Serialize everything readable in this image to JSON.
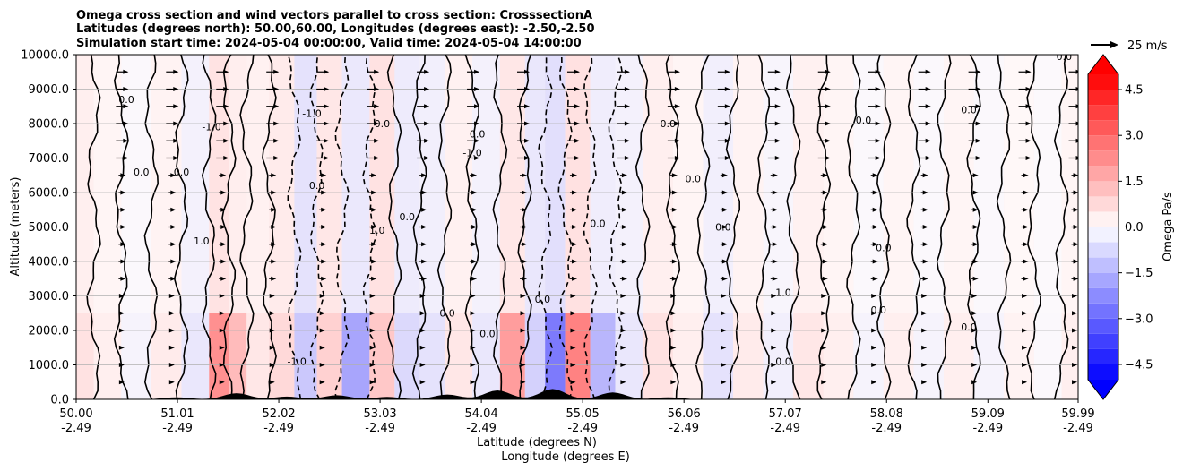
{
  "chart_data": {
    "type": "heatmap",
    "title_lines": [
      "Omega cross section and wind vectors parallel to cross section: CrosssectionA",
      "Latitudes (degrees north): 50.00,60.00, Longitudes (degrees east): -2.50,-2.50",
      "Simulation start time: 2024-05-04 00:00:00, Valid time: 2024-05-04 14:00:00"
    ],
    "ylabel": "Altitude (meters)",
    "xlabel_lines": [
      "Latitude (degrees N)",
      "Longitude (degrees E)"
    ],
    "ylim": [
      0,
      10000
    ],
    "xlim": [
      50.0,
      59.99
    ],
    "y_ticks": [
      {
        "value": 0,
        "label": "0.0"
      },
      {
        "value": 1000,
        "label": "1000.0"
      },
      {
        "value": 2000,
        "label": "2000.0"
      },
      {
        "value": 3000,
        "label": "3000.0"
      },
      {
        "value": 4000,
        "label": "4000.0"
      },
      {
        "value": 5000,
        "label": "5000.0"
      },
      {
        "value": 6000,
        "label": "6000.0"
      },
      {
        "value": 7000,
        "label": "7000.0"
      },
      {
        "value": 8000,
        "label": "8000.0"
      },
      {
        "value": 9000,
        "label": "9000.0"
      },
      {
        "value": 10000,
        "label": "10000.0"
      }
    ],
    "x_ticks": [
      {
        "lat": 50.0,
        "lat_label": "50.00",
        "lon_label": "-2.49"
      },
      {
        "lat": 51.01,
        "lat_label": "51.01",
        "lon_label": "-2.49"
      },
      {
        "lat": 52.02,
        "lat_label": "52.02",
        "lon_label": "-2.49"
      },
      {
        "lat": 53.03,
        "lat_label": "53.03",
        "lon_label": "-2.49"
      },
      {
        "lat": 54.04,
        "lat_label": "54.04",
        "lon_label": "-2.49"
      },
      {
        "lat": 55.05,
        "lat_label": "55.05",
        "lon_label": "-2.49"
      },
      {
        "lat": 56.06,
        "lat_label": "56.06",
        "lon_label": "-2.49"
      },
      {
        "lat": 57.07,
        "lat_label": "57.07",
        "lon_label": "-2.49"
      },
      {
        "lat": 58.08,
        "lat_label": "58.08",
        "lon_label": "-2.49"
      },
      {
        "lat": 59.09,
        "lat_label": "59.09",
        "lon_label": "-2.49"
      },
      {
        "lat": 59.99,
        "lat_label": "59.99",
        "lon_label": "-2.49"
      }
    ],
    "grid": "horizontal",
    "colorbar": {
      "label": "Omega Pa/s",
      "range": [
        -5.0,
        5.0
      ],
      "ticks": [
        {
          "value": 4.5,
          "label": "4.5"
        },
        {
          "value": 3.0,
          "label": "3.0"
        },
        {
          "value": 1.5,
          "label": "1.5"
        },
        {
          "value": 0.0,
          "label": "0.0"
        },
        {
          "value": -1.5,
          "label": "−1.5"
        },
        {
          "value": -3.0,
          "label": "−3.0"
        },
        {
          "value": -4.5,
          "label": "−4.5"
        }
      ],
      "colors": {
        "negative_max": "#0000ff",
        "positive_max": "#ff0000",
        "neutral": "#ffffff"
      }
    },
    "vector_key": {
      "label": "25 m/s",
      "speed": 25
    },
    "omega_columns": [
      {
        "lat": 50.05,
        "omega": 0.6
      },
      {
        "lat": 50.3,
        "omega": 0.3
      },
      {
        "lat": 50.6,
        "omega": -0.2
      },
      {
        "lat": 50.9,
        "omega": 0.4
      },
      {
        "lat": 51.2,
        "omega": -0.5
      },
      {
        "lat": 51.45,
        "omega": 2.5
      },
      {
        "lat": 51.6,
        "omega": 1.5
      },
      {
        "lat": 51.8,
        "omega": 0.5
      },
      {
        "lat": 52.05,
        "omega": 0.8
      },
      {
        "lat": 52.3,
        "omega": -1.2
      },
      {
        "lat": 52.5,
        "omega": 1.0
      },
      {
        "lat": 52.8,
        "omega": -2.0
      },
      {
        "lat": 53.05,
        "omega": 1.2
      },
      {
        "lat": 53.3,
        "omega": -0.8
      },
      {
        "lat": 53.55,
        "omega": -0.6
      },
      {
        "lat": 53.8,
        "omega": 0.5
      },
      {
        "lat": 54.1,
        "omega": -0.5
      },
      {
        "lat": 54.35,
        "omega": 2.2
      },
      {
        "lat": 54.6,
        "omega": -1.0
      },
      {
        "lat": 54.75,
        "omega": -3.0
      },
      {
        "lat": 55.0,
        "omega": 2.8
      },
      {
        "lat": 55.25,
        "omega": -1.6
      },
      {
        "lat": 55.5,
        "omega": -0.5
      },
      {
        "lat": 55.8,
        "omega": 0.6
      },
      {
        "lat": 56.1,
        "omega": 0.3
      },
      {
        "lat": 56.4,
        "omega": -0.6
      },
      {
        "lat": 56.7,
        "omega": 0.4
      },
      {
        "lat": 57.0,
        "omega": -0.3
      },
      {
        "lat": 57.3,
        "omega": 0.5
      },
      {
        "lat": 57.6,
        "omega": 0.3
      },
      {
        "lat": 57.9,
        "omega": -0.2
      },
      {
        "lat": 58.2,
        "omega": 0.3
      },
      {
        "lat": 58.5,
        "omega": -0.2
      },
      {
        "lat": 58.8,
        "omega": 0.3
      },
      {
        "lat": 59.1,
        "omega": -0.2
      },
      {
        "lat": 59.4,
        "omega": 0.2
      },
      {
        "lat": 59.7,
        "omega": -0.1
      },
      {
        "lat": 59.95,
        "omega": 0.3
      }
    ],
    "contour_labels": [
      {
        "lat": 50.5,
        "alt": 8600,
        "text": "0.0"
      },
      {
        "lat": 50.65,
        "alt": 6500,
        "text": "0.0"
      },
      {
        "lat": 51.05,
        "alt": 6500,
        "text": "0.0"
      },
      {
        "lat": 51.35,
        "alt": 7800,
        "text": "-1.0"
      },
      {
        "lat": 51.25,
        "alt": 4500,
        "text": "1.0"
      },
      {
        "lat": 52.2,
        "alt": 1000,
        "text": "-1.0"
      },
      {
        "lat": 52.35,
        "alt": 8200,
        "text": "-1.0"
      },
      {
        "lat": 52.4,
        "alt": 6100,
        "text": "0.0"
      },
      {
        "lat": 53.05,
        "alt": 7900,
        "text": "0.0"
      },
      {
        "lat": 53.0,
        "alt": 4800,
        "text": "1.0"
      },
      {
        "lat": 53.3,
        "alt": 5200,
        "text": "0.0"
      },
      {
        "lat": 53.95,
        "alt": 7050,
        "text": "-1.0"
      },
      {
        "lat": 54.0,
        "alt": 7600,
        "text": "0.0"
      },
      {
        "lat": 53.7,
        "alt": 2400,
        "text": "0.0"
      },
      {
        "lat": 54.1,
        "alt": 1800,
        "text": "0.0"
      },
      {
        "lat": 54.65,
        "alt": 2800,
        "text": "0.0"
      },
      {
        "lat": 55.2,
        "alt": 5000,
        "text": "0.0"
      },
      {
        "lat": 55.9,
        "alt": 7900,
        "text": "0.0"
      },
      {
        "lat": 56.15,
        "alt": 6300,
        "text": "0.0"
      },
      {
        "lat": 56.45,
        "alt": 4900,
        "text": "0.0"
      },
      {
        "lat": 57.05,
        "alt": 3000,
        "text": "1.0"
      },
      {
        "lat": 57.05,
        "alt": 1000,
        "text": "0.0"
      },
      {
        "lat": 57.85,
        "alt": 8000,
        "text": "0.0"
      },
      {
        "lat": 58.05,
        "alt": 4300,
        "text": "0.0"
      },
      {
        "lat": 58.0,
        "alt": 2500,
        "text": "0.0"
      },
      {
        "lat": 58.9,
        "alt": 8300,
        "text": "0.0"
      },
      {
        "lat": 58.9,
        "alt": 2000,
        "text": "0.0"
      },
      {
        "lat": 59.85,
        "alt": 9850,
        "text": "0.0"
      }
    ]
  }
}
